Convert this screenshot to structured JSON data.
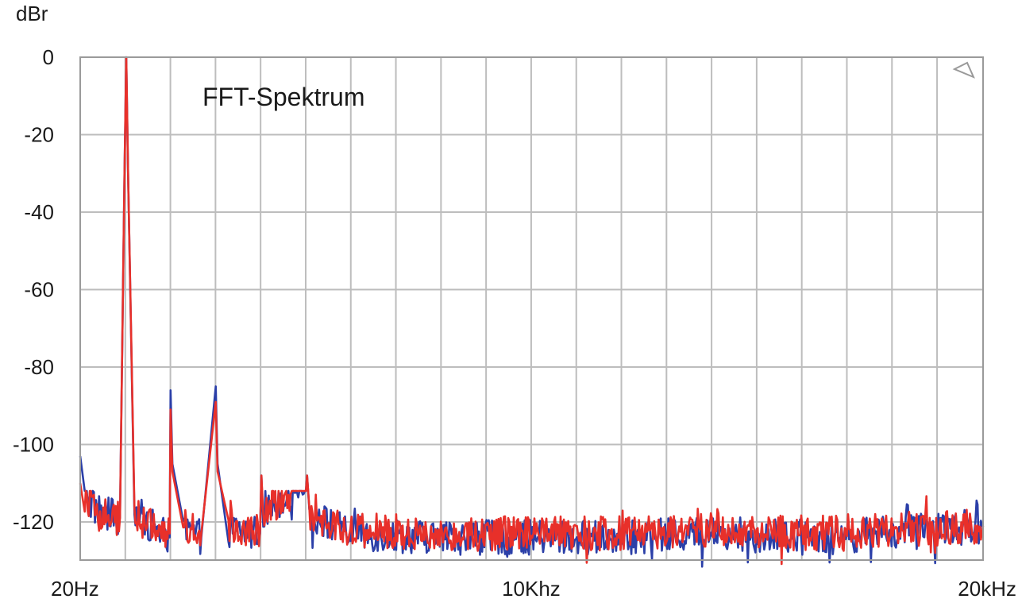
{
  "chart_data": {
    "type": "line",
    "title": "FFT-Spektrum",
    "ylabel": "dBr",
    "xlabel": "",
    "x_scale": "linear",
    "xlim": [
      20,
      20000
    ],
    "ylim": [
      -130,
      0
    ],
    "grid": true,
    "legend": "none",
    "x_ticks": [
      {
        "value": 20,
        "label": "20Hz"
      },
      {
        "value": 10000,
        "label": "10Khz"
      },
      {
        "value": 20000,
        "label": "20kHz"
      }
    ],
    "y_ticks": [
      {
        "value": 0,
        "label": "0"
      },
      {
        "value": -20,
        "label": "-20"
      },
      {
        "value": -40,
        "label": "-40"
      },
      {
        "value": -60,
        "label": "-60"
      },
      {
        "value": -80,
        "label": "-80"
      },
      {
        "value": -100,
        "label": "-100"
      },
      {
        "value": -120,
        "label": "-120"
      }
    ],
    "x_gridlines": [
      20,
      1018,
      2016,
      3014,
      4012,
      5010,
      6008,
      7006,
      8004,
      9002,
      10000,
      10998,
      11996,
      12994,
      13992,
      14990,
      15988,
      16986,
      17984,
      18982,
      20000
    ],
    "y_gridlines": [
      0,
      -20,
      -40,
      -60,
      -80,
      -100,
      -120
    ],
    "series": [
      {
        "color": "#2b3fa8",
        "noise_floor": -122,
        "points": [
          [
            20,
            -103
          ],
          [
            120,
            -111
          ],
          [
            300,
            -116
          ],
          [
            600,
            -118
          ],
          [
            900,
            -119
          ],
          [
            1000,
            -30
          ],
          [
            1040,
            0
          ],
          [
            1080,
            -30
          ],
          [
            1220,
            -117
          ],
          [
            1400,
            -119
          ],
          [
            1600,
            -121
          ],
          [
            2000,
            -124
          ],
          [
            2020,
            -86
          ],
          [
            2060,
            -105
          ],
          [
            2300,
            -122
          ],
          [
            2700,
            -124
          ],
          [
            3020,
            -85
          ],
          [
            3060,
            -105
          ],
          [
            3300,
            -122
          ],
          [
            4000,
            -123
          ],
          [
            4030,
            -108
          ],
          [
            4070,
            -118
          ],
          [
            5040,
            -108
          ],
          [
            5090,
            -118
          ],
          [
            6000,
            -123
          ],
          [
            8000,
            -124
          ],
          [
            10000,
            -124
          ],
          [
            12000,
            -124
          ],
          [
            14000,
            -123
          ],
          [
            16000,
            -124
          ],
          [
            18000,
            -123
          ],
          [
            20000,
            -121
          ]
        ]
      },
      {
        "color": "#e8302a",
        "noise_floor": -121,
        "points": [
          [
            20,
            -110
          ],
          [
            120,
            -113
          ],
          [
            300,
            -117
          ],
          [
            600,
            -119
          ],
          [
            900,
            -119
          ],
          [
            1000,
            -30
          ],
          [
            1040,
            0
          ],
          [
            1080,
            -30
          ],
          [
            1220,
            -118
          ],
          [
            1400,
            -120
          ],
          [
            1600,
            -121
          ],
          [
            2000,
            -123
          ],
          [
            2020,
            -91
          ],
          [
            2060,
            -107
          ],
          [
            2300,
            -121
          ],
          [
            2700,
            -123
          ],
          [
            3020,
            -89
          ],
          [
            3060,
            -107
          ],
          [
            3300,
            -121
          ],
          [
            4000,
            -122
          ],
          [
            4030,
            -108
          ],
          [
            4070,
            -118
          ],
          [
            5040,
            -108
          ],
          [
            5090,
            -118
          ],
          [
            6000,
            -122
          ],
          [
            8000,
            -123
          ],
          [
            10000,
            -123
          ],
          [
            12000,
            -123
          ],
          [
            14000,
            -122
          ],
          [
            16000,
            -123
          ],
          [
            18000,
            -122
          ],
          [
            20000,
            -121
          ]
        ]
      }
    ]
  }
}
